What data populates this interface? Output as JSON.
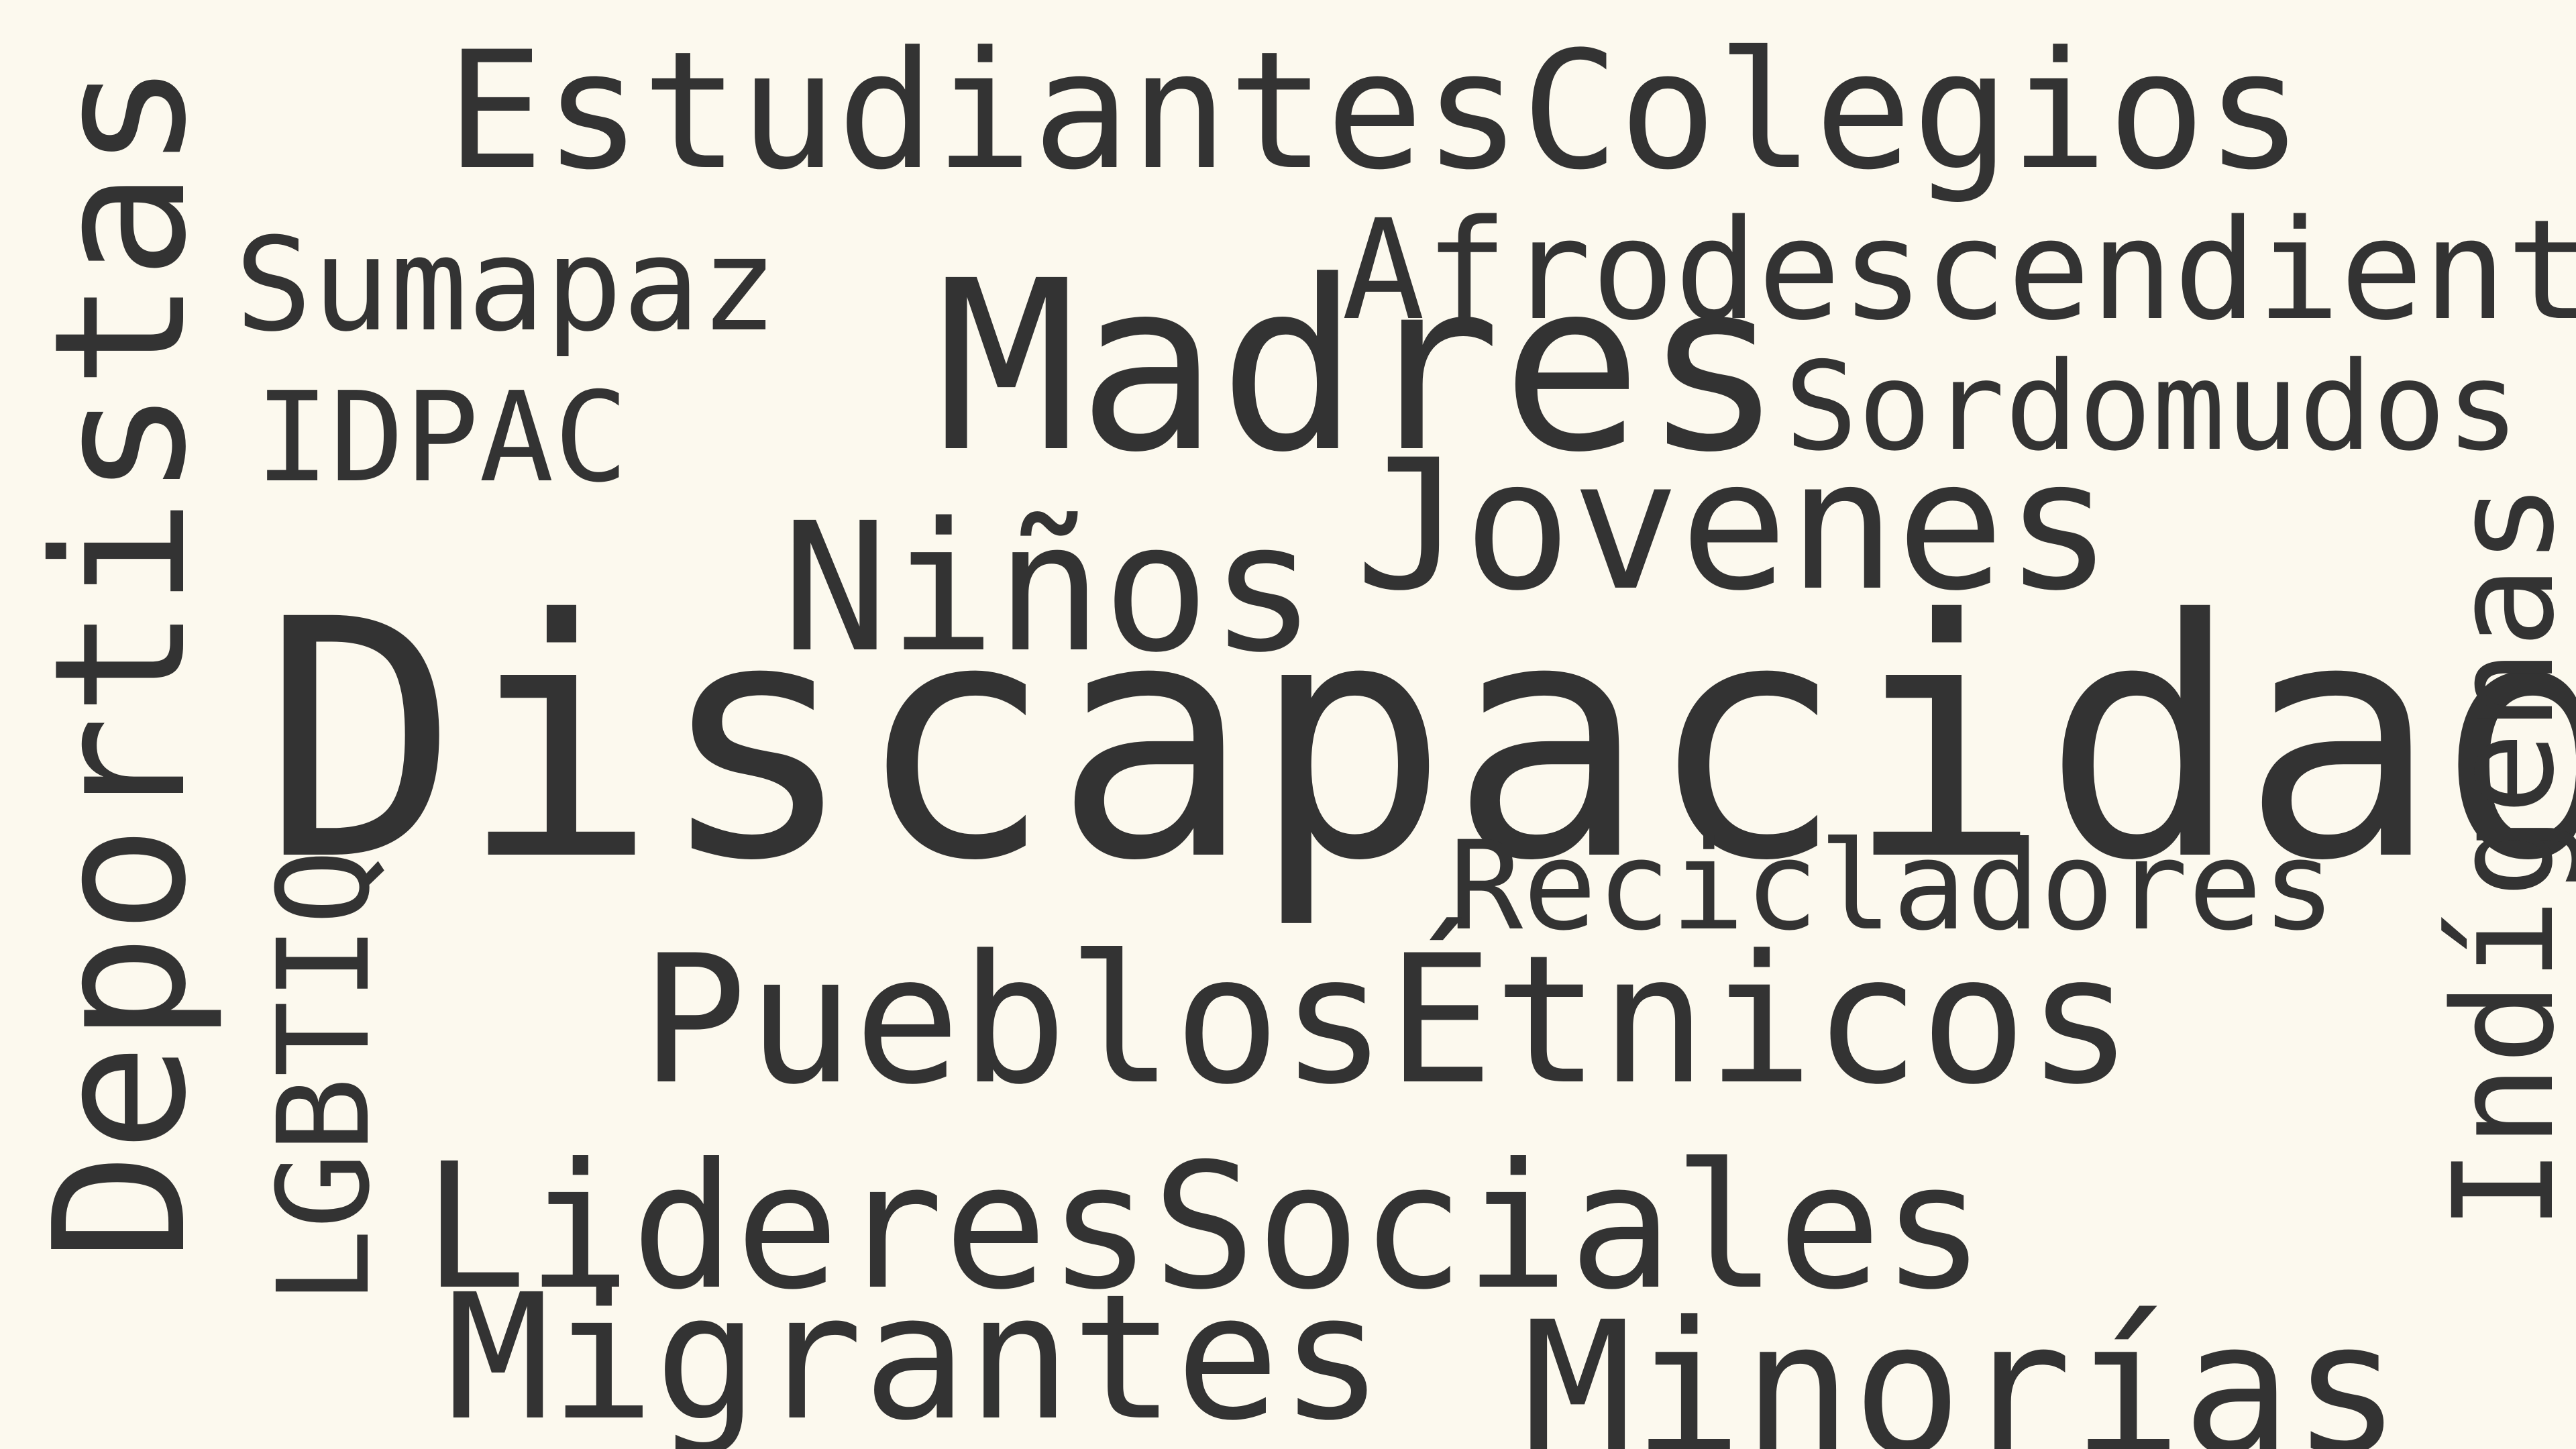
{
  "words": {
    "estudiantes_colegios": "EstudiantesColegios",
    "sumapaz": "Sumapaz",
    "afrodescendiente": "Afrodescendiente",
    "madres": "Madres",
    "sordomudos": "Sordomudos",
    "idpac": "IDPAC",
    "jovenes": "Jovenes",
    "ninos": "Niños",
    "discapacidad": "Discapacidad",
    "recicladores": "Recicladores",
    "pueblos_etnicos": "PueblosÉtnicos",
    "lideres_sociales": "LideresSociales",
    "migrantes": "Migrantes",
    "minorias": "Minorías",
    "deportistas": "Deportistas",
    "lgbtiq": "LGBTIQ",
    "indigenas": "Indígenas"
  },
  "colors": {
    "background": "#FCF9EE",
    "text": "#333333"
  }
}
